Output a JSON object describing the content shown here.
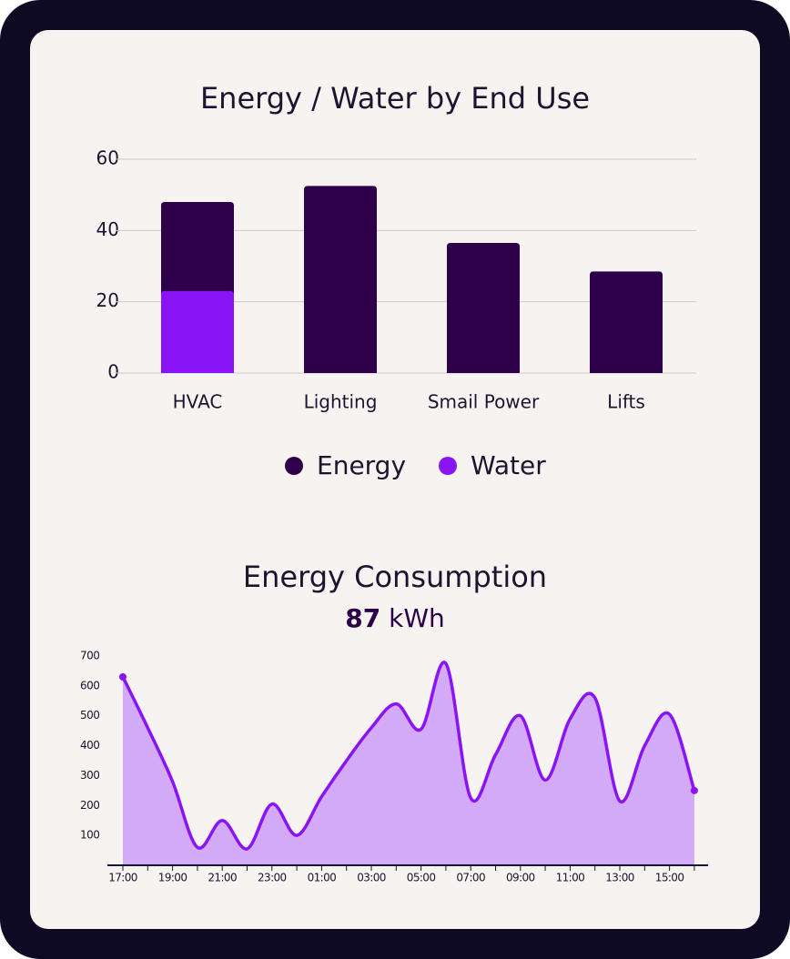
{
  "chart_data": [
    {
      "type": "bar",
      "title": "Energy / Water by End Use",
      "categories": [
        "HVAC",
        "Lighting",
        "Smail Power",
        "Lifts"
      ],
      "series": [
        {
          "name": "Energy",
          "color": "#2d0049",
          "values": [
            48,
            52.5,
            36.5,
            28.5
          ]
        },
        {
          "name": "Water",
          "color": "#8a14f5",
          "values": [
            23,
            null,
            null,
            null
          ]
        }
      ],
      "ylim": [
        0,
        60
      ],
      "yticks": [
        0,
        20,
        40,
        60
      ],
      "grid": true,
      "legend": "bottom"
    },
    {
      "type": "line",
      "title": "Energy Consumption",
      "total": 87,
      "total_unit": "kWh",
      "categories": [
        "17:00",
        null,
        "19:00",
        null,
        "21:00",
        null,
        "23:00",
        null,
        "01:00",
        null,
        "03:00",
        null,
        "05:00",
        null,
        "07:00",
        null,
        "09:00",
        null,
        "11:00",
        null,
        "13:00",
        null,
        "15:00",
        null
      ],
      "series": [
        {
          "name": "Energy",
          "color": "#8a14f5",
          "fill": "#d3aaf5",
          "values": [
            630,
            460,
            280,
            60,
            150,
            55,
            205,
            100,
            230,
            350,
            460,
            540,
            455,
            675,
            225,
            370,
            500,
            285,
            490,
            560,
            215,
            400,
            505,
            250
          ]
        }
      ],
      "ylim": [
        0,
        700
      ],
      "yticks": [
        100,
        200,
        300,
        400,
        500,
        600,
        700
      ],
      "grid": false
    }
  ]
}
